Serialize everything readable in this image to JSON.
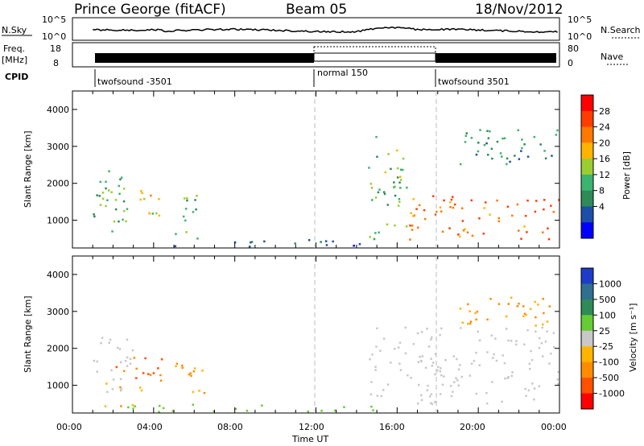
{
  "header": {
    "title": "Prince George (fitACF)",
    "beam": "Beam 05",
    "date": "18/Nov/2012"
  },
  "noise_panel": {
    "left_label": "N.Sky",
    "right_label": "N.Search",
    "left_ticks": [
      "10^5",
      "10^0"
    ],
    "right_ticks": [
      "10^5",
      "10^0"
    ]
  },
  "freq_panel": {
    "left_label_1": "Freq.",
    "left_label_2": "[MHz]",
    "right_label": "Nave",
    "left_ticks": [
      "18",
      "8"
    ],
    "right_ticks": [
      "80",
      "0"
    ]
  },
  "cpid": {
    "label": "CPID",
    "segments": [
      {
        "label": "twofsound -3501",
        "start_hour": 1.0,
        "end_hour": 12.0
      },
      {
        "label": "normal 150",
        "start_hour": 12.0,
        "end_hour": 18.0
      },
      {
        "label": "twofsound 3501",
        "start_hour": 18.0,
        "end_hour": 24.0
      }
    ]
  },
  "axes": {
    "ylabel": "Slant Range [km]",
    "xlabel": "Time UT",
    "y_ticks": [
      "4000",
      "3000",
      "2000",
      "1000"
    ],
    "x_ticks": [
      "00:00",
      "04:00",
      "08:00",
      "12:00",
      "16:00",
      "20:00",
      "00:00"
    ]
  },
  "power_scale": {
    "label": "Power [dB]",
    "ticks": [
      "28",
      "24",
      "20",
      "16",
      "12",
      "8",
      "4"
    ],
    "colors": [
      "#ff0000",
      "#ff3c00",
      "#ff7800",
      "#ffb400",
      "#9acd32",
      "#3cb371",
      "#2e8b57",
      "#1e4fa8",
      "#0000ff"
    ]
  },
  "velocity_scale": {
    "label": "Velocity [m s⁻¹]",
    "ticks": [
      "1000",
      "500",
      "100",
      "25",
      "-25",
      "-100",
      "-500",
      "-1000"
    ],
    "colors": [
      "#1e3cc8",
      "#2f6f8f",
      "#2e8b57",
      "#66cc33",
      "#c8c8c8",
      "#ffb400",
      "#ff8c00",
      "#ff5000",
      "#ff0000"
    ]
  },
  "chart_data": {
    "type": "heatmap",
    "x_unit": "hours UT",
    "xlim": [
      0,
      24
    ],
    "ylim": [
      250,
      4500
    ],
    "regions": {
      "power": [
        {
          "x0": 1.0,
          "x1": 2.5,
          "y0": 700,
          "y1": 2400,
          "value": 12
        },
        {
          "x0": 1.5,
          "x1": 4.3,
          "y0": 900,
          "y1": 1900,
          "value": 18
        },
        {
          "x0": 5.0,
          "x1": 6.5,
          "y0": 500,
          "y1": 1700,
          "value": 12
        },
        {
          "x0": 2.5,
          "x1": 15.0,
          "y0": 300,
          "y1": 500,
          "value": 6
        },
        {
          "x0": 14.5,
          "x1": 16.5,
          "y0": 500,
          "y1": 3400,
          "value": 14
        },
        {
          "x0": 16.5,
          "x1": 24.0,
          "y0": 500,
          "y1": 1700,
          "value": 24
        },
        {
          "x0": 19.0,
          "x1": 24.0,
          "y0": 2500,
          "y1": 3500,
          "value": 10
        }
      ],
      "velocity": [
        {
          "x0": 1.0,
          "x1": 3.0,
          "y0": 800,
          "y1": 2400,
          "value": 0
        },
        {
          "x0": 2.0,
          "x1": 4.5,
          "y0": 1100,
          "y1": 1800,
          "value": -500
        },
        {
          "x0": 1.0,
          "x1": 3.5,
          "y0": 400,
          "y1": 1100,
          "value": -100
        },
        {
          "x0": 5.0,
          "x1": 6.5,
          "y0": 500,
          "y1": 1700,
          "value": -100
        },
        {
          "x0": 2.5,
          "x1": 15.0,
          "y0": 300,
          "y1": 500,
          "value": 50
        },
        {
          "x0": 14.5,
          "x1": 24.0,
          "y0": 500,
          "y1": 2600,
          "value": 0
        },
        {
          "x0": 19.0,
          "x1": 24.0,
          "y0": 2600,
          "y1": 3400,
          "value": -100
        }
      ]
    }
  }
}
